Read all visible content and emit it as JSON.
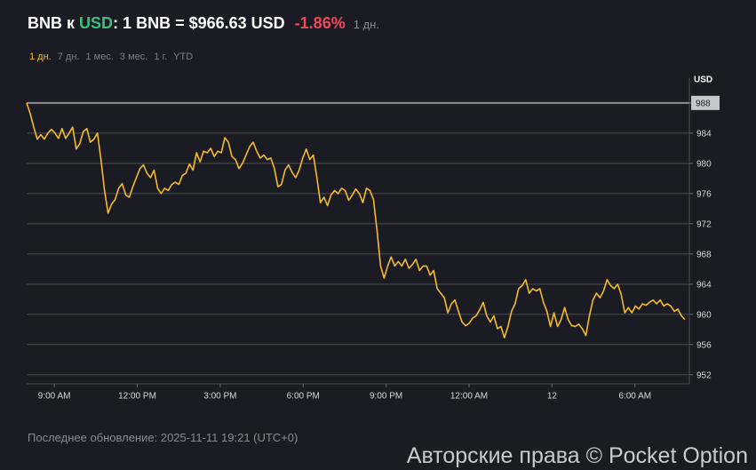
{
  "header": {
    "base": "BNB",
    "connector": "к",
    "quote": "USD",
    "rate": ": 1 BNB = $966.63 USD",
    "change": "-1.86%",
    "period": "1 дн."
  },
  "periods": [
    "1 дн.",
    "7 дн.",
    "1 мес.",
    "3 мес.",
    "1 г.",
    "YTD"
  ],
  "active_period": 0,
  "footer": "Последнее обновление: 2025-11-11 19:21 (UTC+0)",
  "watermark": "Авторские права © Pocket Option",
  "chart_data": {
    "type": "line",
    "y_label": "USD",
    "color": "#f3ba2f",
    "grid": true,
    "reference_line": 988,
    "xlim": [
      8,
      32
    ],
    "ylim": [
      950.8,
      990.1
    ],
    "xticks": [
      {
        "value": 9,
        "label": "9:00 AM"
      },
      {
        "value": 12,
        "label": "12:00 PM"
      },
      {
        "value": 15,
        "label": "3:00 PM"
      },
      {
        "value": 18,
        "label": "6:00 PM"
      },
      {
        "value": 21,
        "label": "9:00 PM"
      },
      {
        "value": 24,
        "label": "12:00 AM"
      },
      {
        "value": 27,
        "label": "12"
      },
      {
        "value": 30,
        "label": "6:00 AM"
      }
    ],
    "yticks": [
      952,
      956,
      960,
      964,
      968,
      972,
      976,
      980,
      984,
      988
    ],
    "x": [
      8,
      8.128,
      8.256,
      8.384,
      8.512,
      8.64,
      8.768,
      8.896,
      9.024,
      9.152,
      9.28,
      9.408,
      9.536,
      9.664,
      9.792,
      9.92,
      10.048,
      10.176,
      10.304,
      10.432,
      10.56,
      10.688,
      10.816,
      10.944,
      11.072,
      11.2,
      11.328,
      11.456,
      11.584,
      11.712,
      11.84,
      11.968,
      12.096,
      12.224,
      12.352,
      12.48,
      12.608,
      12.736,
      12.864,
      12.992,
      13.12,
      13.248,
      13.376,
      13.504,
      13.632,
      13.76,
      13.888,
      14.016,
      14.144,
      14.272,
      14.4,
      14.528,
      14.656,
      14.784,
      14.912,
      15.04,
      15.168,
      15.296,
      15.424,
      15.552,
      15.68,
      15.808,
      15.936,
      16.064,
      16.192,
      16.32,
      16.448,
      16.576,
      16.704,
      16.832,
      16.96,
      17.088,
      17.216,
      17.344,
      17.472,
      17.6,
      17.728,
      17.856,
      17.984,
      18.112,
      18.24,
      18.368,
      18.496,
      18.624,
      18.752,
      18.88,
      19.008,
      19.136,
      19.264,
      19.392,
      19.52,
      19.648,
      19.776,
      19.904,
      20.032,
      20.16,
      20.288,
      20.416,
      20.544,
      20.672,
      20.8,
      20.928,
      21.056,
      21.184,
      21.312,
      21.44,
      21.568,
      21.696,
      21.824,
      21.952,
      22.08,
      22.208,
      22.336,
      22.464,
      22.592,
      22.72,
      22.848,
      22.976,
      23.104,
      23.232,
      23.36,
      23.488,
      23.616,
      23.744,
      23.872,
      24,
      24.128,
      24.256,
      24.384,
      24.512,
      24.64,
      24.768,
      24.896,
      25.024,
      25.152,
      25.28,
      25.408,
      25.536,
      25.664,
      25.792,
      25.92,
      26.048,
      26.176,
      26.304,
      26.432,
      26.56,
      26.688,
      26.816,
      26.944,
      27.072,
      27.2,
      27.328,
      27.456,
      27.584,
      27.712,
      27.84,
      27.968,
      28.096,
      28.224,
      28.352,
      28.48,
      28.608,
      28.736,
      28.864,
      28.992,
      29.12,
      29.248,
      29.376,
      29.504,
      29.632,
      29.76,
      29.888,
      30.016,
      30.144,
      30.272,
      30.4,
      30.528,
      30.656,
      30.784,
      30.912,
      31.04,
      31.168,
      31.296,
      31.424,
      31.552,
      31.68,
      31.808
    ],
    "values": [
      988,
      986.6,
      984.8,
      983.2,
      983.8,
      983.2,
      984,
      984.5,
      984,
      983.3,
      984.6,
      983.3,
      984,
      984.8,
      981.9,
      982.6,
      984.2,
      984.6,
      982.8,
      983.2,
      984,
      980.5,
      976.4,
      973.4,
      974.6,
      975.2,
      976.7,
      977.3,
      975.8,
      975.5,
      976.9,
      978.1,
      979.3,
      979.8,
      978.7,
      978.1,
      979.1,
      976.7,
      976,
      976.7,
      976.4,
      977.2,
      977.5,
      977.2,
      978.4,
      978.7,
      979.9,
      979.1,
      981.4,
      980.2,
      981.6,
      981.4,
      982,
      980.9,
      981.6,
      981.4,
      983.4,
      982.8,
      980.9,
      980.5,
      979.3,
      980,
      981.1,
      982.2,
      982.8,
      981.6,
      980.7,
      981.1,
      980.5,
      980.7,
      979.3,
      976.9,
      977.2,
      979.1,
      979.8,
      978.8,
      978.1,
      979.1,
      980.7,
      981.9,
      980.5,
      981.1,
      978.1,
      974.8,
      975.5,
      974.4,
      975.8,
      976.4,
      976,
      976.7,
      976.4,
      975.1,
      975.8,
      976.6,
      976,
      974.8,
      976.7,
      976.4,
      975.2,
      971.1,
      966.4,
      964.8,
      966.4,
      967.6,
      966.4,
      967,
      966.4,
      967.3,
      966.1,
      966.6,
      967.3,
      965.8,
      966.4,
      966.4,
      965.2,
      965.8,
      963.4,
      962.8,
      962.2,
      960.2,
      961.4,
      961.9,
      960.4,
      959,
      958.5,
      958.8,
      959.5,
      959.8,
      960.6,
      961.6,
      959.8,
      959,
      959.8,
      958.1,
      958.4,
      956.9,
      958.4,
      960.4,
      961.4,
      963.4,
      963.8,
      964.6,
      962.8,
      963.4,
      963.1,
      963.4,
      961.6,
      960.4,
      958.4,
      960.2,
      958.4,
      959.3,
      960.9,
      959.3,
      958.5,
      958.4,
      958.7,
      958.1,
      957.2,
      959.8,
      961.9,
      962.8,
      962.2,
      963.1,
      964.6,
      963.8,
      963.4,
      964,
      962.6,
      960.2,
      960.9,
      960.2,
      961.1,
      960.7,
      961.4,
      961.2,
      961.6,
      961.9,
      961.4,
      961.9,
      961.1,
      961.4,
      961.1,
      960.4,
      960.7,
      959.8,
      959.3
    ]
  }
}
